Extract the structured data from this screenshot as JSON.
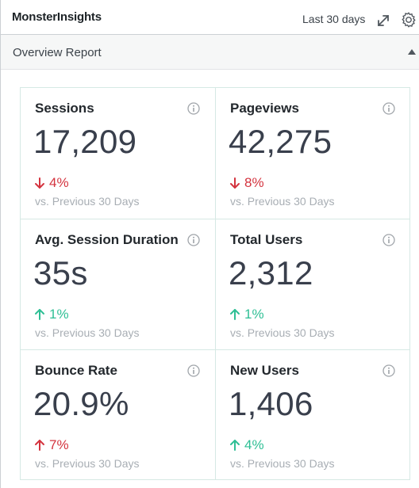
{
  "header": {
    "title": "MonsterInsights",
    "date_range": "Last 30 days",
    "expand_icon": "expand-icon",
    "settings_icon": "gear-icon"
  },
  "section": {
    "title": "Overview Report",
    "toggle_icon": "collapse-up-icon"
  },
  "colors": {
    "down": "#d4343f",
    "up": "#2fbf95",
    "border": "#d6e9e4"
  },
  "metrics": [
    {
      "label": "Sessions",
      "value": "17,209",
      "change": "4%",
      "direction": "down",
      "comparison": "vs. Previous 30 Days"
    },
    {
      "label": "Pageviews",
      "value": "42,275",
      "change": "8%",
      "direction": "down",
      "comparison": "vs. Previous 30 Days"
    },
    {
      "label": "Avg. Session Duration",
      "value": "35s",
      "change": "1%",
      "direction": "up",
      "comparison": "vs. Previous 30 Days"
    },
    {
      "label": "Total Users",
      "value": "2,312",
      "change": "1%",
      "direction": "up",
      "comparison": "vs. Previous 30 Days"
    },
    {
      "label": "Bounce Rate",
      "value": "20.9%",
      "change": "7%",
      "direction": "up-bad",
      "comparison": "vs. Previous 30 Days"
    },
    {
      "label": "New Users",
      "value": "1,406",
      "change": "4%",
      "direction": "up",
      "comparison": "vs. Previous 30 Days"
    }
  ]
}
